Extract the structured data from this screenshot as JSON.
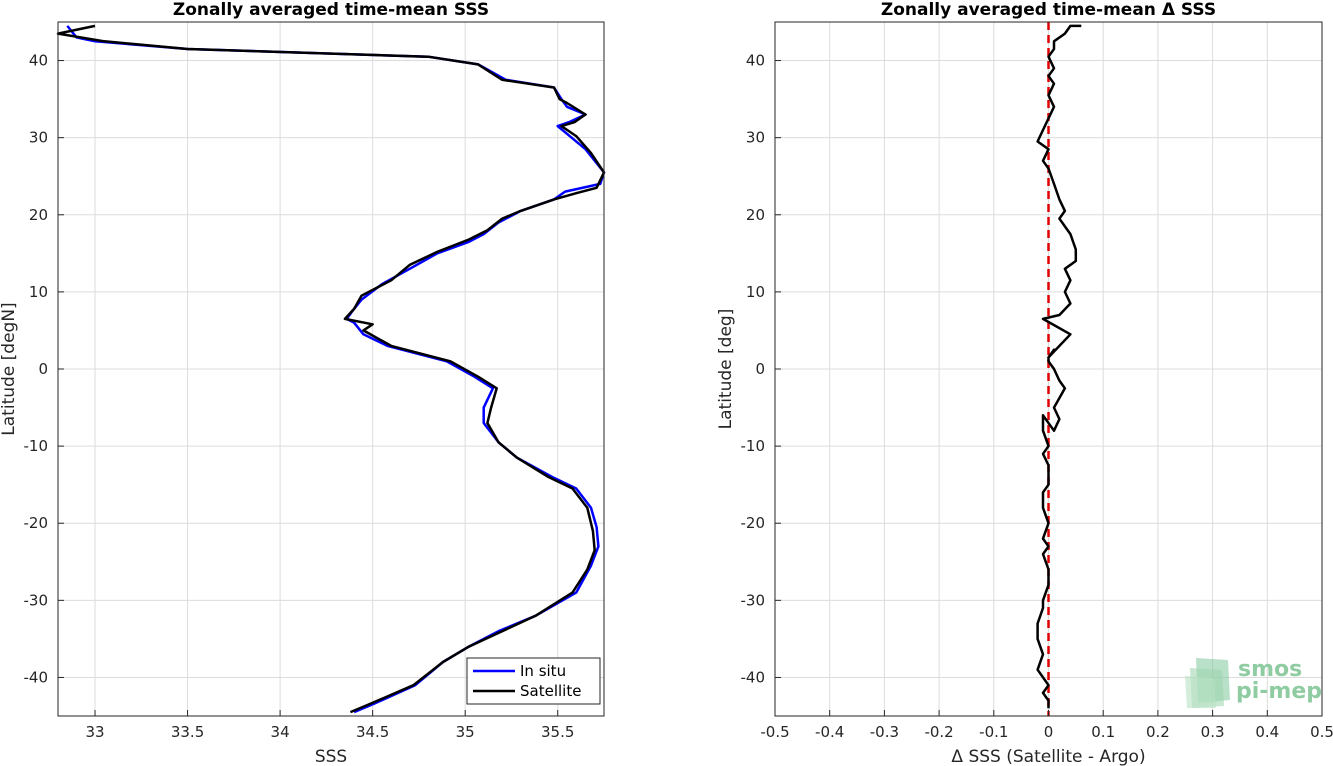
{
  "chart_data": [
    {
      "type": "line",
      "title": "Zonally averaged time-mean SSS",
      "xlabel": "SSS",
      "ylabel": "Latitude [degN]",
      "xlim": [
        32.8,
        35.75
      ],
      "ylim": [
        -45,
        45
      ],
      "xticks": [
        33,
        33.5,
        34,
        34.5,
        35,
        35.5
      ],
      "yticks": [
        -40,
        -30,
        -20,
        -10,
        0,
        10,
        20,
        30,
        40
      ],
      "grid": true,
      "legend": {
        "placement": "bottom-right",
        "entries": [
          "In situ",
          "Satellite"
        ]
      },
      "series": [
        {
          "name": "In situ",
          "color": "#0000ff",
          "x": [
            34.4,
            34.5,
            34.73,
            34.88,
            35.02,
            35.18,
            35.38,
            35.6,
            35.68,
            35.72,
            35.71,
            35.68,
            35.6,
            35.47,
            35.28,
            35.18,
            35.1,
            35.1,
            35.15,
            35.05,
            34.9,
            34.58,
            34.45,
            34.4,
            34.36,
            34.39,
            34.44,
            34.55,
            34.7,
            34.85,
            35.02,
            35.1,
            35.18,
            35.3,
            35.48,
            35.54,
            35.73,
            35.75,
            35.65,
            35.55,
            35.5,
            35.56,
            35.65,
            35.55,
            35.52,
            35.48,
            35.22,
            35.07,
            34.8,
            33.5,
            33.0,
            32.9,
            32.85
          ],
          "y": [
            -44.5,
            -43.5,
            -41.0,
            -38.0,
            -36.0,
            -34.0,
            -32.0,
            -29.0,
            -25.5,
            -23.0,
            -20.5,
            -18.0,
            -15.5,
            -14.0,
            -11.5,
            -9.5,
            -7.0,
            -5.0,
            -2.5,
            -1.0,
            1.0,
            3.0,
            4.5,
            6.0,
            6.5,
            7.5,
            9.0,
            11.0,
            13.0,
            15.0,
            16.5,
            17.5,
            19.0,
            20.5,
            22.0,
            23.0,
            24.0,
            25.5,
            28.5,
            30.5,
            31.5,
            32.0,
            33.0,
            34.0,
            35.0,
            36.5,
            37.5,
            39.5,
            40.5,
            41.5,
            42.5,
            43.0,
            44.5
          ]
        },
        {
          "name": "Satellite",
          "color": "#000000",
          "x": [
            34.38,
            34.48,
            34.72,
            34.88,
            35.02,
            35.2,
            35.38,
            35.58,
            35.66,
            35.7,
            35.69,
            35.66,
            35.58,
            35.45,
            35.28,
            35.18,
            35.12,
            35.14,
            35.17,
            35.07,
            34.92,
            34.6,
            34.45,
            34.5,
            34.35,
            34.4,
            34.44,
            34.6,
            34.7,
            34.85,
            35.02,
            35.12,
            35.2,
            35.3,
            35.48,
            35.6,
            35.71,
            35.75,
            35.68,
            35.6,
            35.52,
            35.59,
            35.65,
            35.55,
            35.51,
            35.48,
            35.2,
            35.07,
            34.8,
            33.5,
            33.05,
            32.8,
            33.0
          ],
          "y": [
            -44.5,
            -43.5,
            -41.0,
            -38.0,
            -36.0,
            -34.0,
            -32.0,
            -29.0,
            -26.0,
            -23.5,
            -21.0,
            -18.0,
            -15.5,
            -14.0,
            -11.5,
            -9.5,
            -7.0,
            -5.0,
            -2.5,
            -1.0,
            1.0,
            3.0,
            5.0,
            5.8,
            6.5,
            7.8,
            9.5,
            11.5,
            13.5,
            15.2,
            16.8,
            18.0,
            19.5,
            20.5,
            22.0,
            22.8,
            23.5,
            25.5,
            28.0,
            30.2,
            31.5,
            32.0,
            33.0,
            34.5,
            35.0,
            36.5,
            37.5,
            39.5,
            40.5,
            41.5,
            42.5,
            43.5,
            44.5
          ]
        }
      ]
    },
    {
      "type": "line",
      "title": "Zonally averaged time-mean Δ SSS",
      "xlabel": "Δ SSS (Satellite - Argo)",
      "ylabel": "Latitude [deg]",
      "xlim": [
        -0.5,
        0.5
      ],
      "ylim": [
        -45,
        45
      ],
      "xticks": [
        -0.5,
        -0.4,
        -0.3,
        -0.2,
        -0.1,
        0,
        0.1,
        0.2,
        0.3,
        0.4,
        0.5
      ],
      "yticks": [
        -40,
        -30,
        -20,
        -10,
        0,
        10,
        20,
        30,
        40
      ],
      "grid": true,
      "reference_line": {
        "x": 0,
        "color": "#e00000",
        "style": "dashed"
      },
      "series": [
        {
          "name": "",
          "color": "#000000",
          "x": [
            0.0,
            0.0,
            -0.01,
            0.0,
            -0.01,
            -0.02,
            -0.01,
            -0.02,
            -0.02,
            -0.01,
            -0.01,
            0.0,
            0.0,
            -0.01,
            0.0,
            -0.01,
            0.0,
            -0.01,
            -0.01,
            0.0,
            0.0,
            0.0,
            -0.01,
            0.0,
            -0.01,
            -0.01,
            0.01,
            0.02,
            0.01,
            0.03,
            0.02,
            0.01,
            0.0,
            0.0,
            0.01,
            0.0,
            0.04,
            -0.01,
            0.02,
            0.04,
            0.03,
            0.04,
            0.03,
            0.05,
            0.05,
            0.04,
            0.02,
            0.03,
            0.02,
            0.01,
            0.0,
            -0.01,
            0.0,
            -0.02,
            -0.01,
            0.0,
            0.01,
            0.0,
            0.01,
            0.0,
            0.01,
            0.0,
            0.01,
            0.01,
            0.03,
            0.04,
            0.06
          ],
          "y": [
            -44.0,
            -43.0,
            -42.0,
            -41.0,
            -40.0,
            -39.0,
            -37.0,
            -35.0,
            -33.0,
            -31.0,
            -30.0,
            -28.0,
            -26.0,
            -24.0,
            -23.0,
            -22.0,
            -20.0,
            -18.0,
            -16.0,
            -15.0,
            -14.0,
            -12.5,
            -11.0,
            -10.0,
            -8.0,
            -6.0,
            -8.0,
            -6.5,
            -5.0,
            -2.5,
            -1.5,
            0.0,
            1.0,
            1.5,
            2.5,
            1.5,
            4.5,
            6.5,
            7.0,
            8.5,
            10.0,
            11.5,
            13.0,
            14.0,
            15.5,
            17.5,
            19.5,
            20.5,
            22.0,
            24.0,
            26.0,
            27.0,
            28.5,
            29.5,
            31.0,
            32.5,
            34.0,
            35.5,
            37.0,
            38.0,
            39.0,
            40.5,
            41.5,
            42.5,
            43.5,
            44.5,
            44.5
          ]
        }
      ]
    }
  ],
  "logo": {
    "line1": "smos",
    "line2": "pi-mep"
  }
}
